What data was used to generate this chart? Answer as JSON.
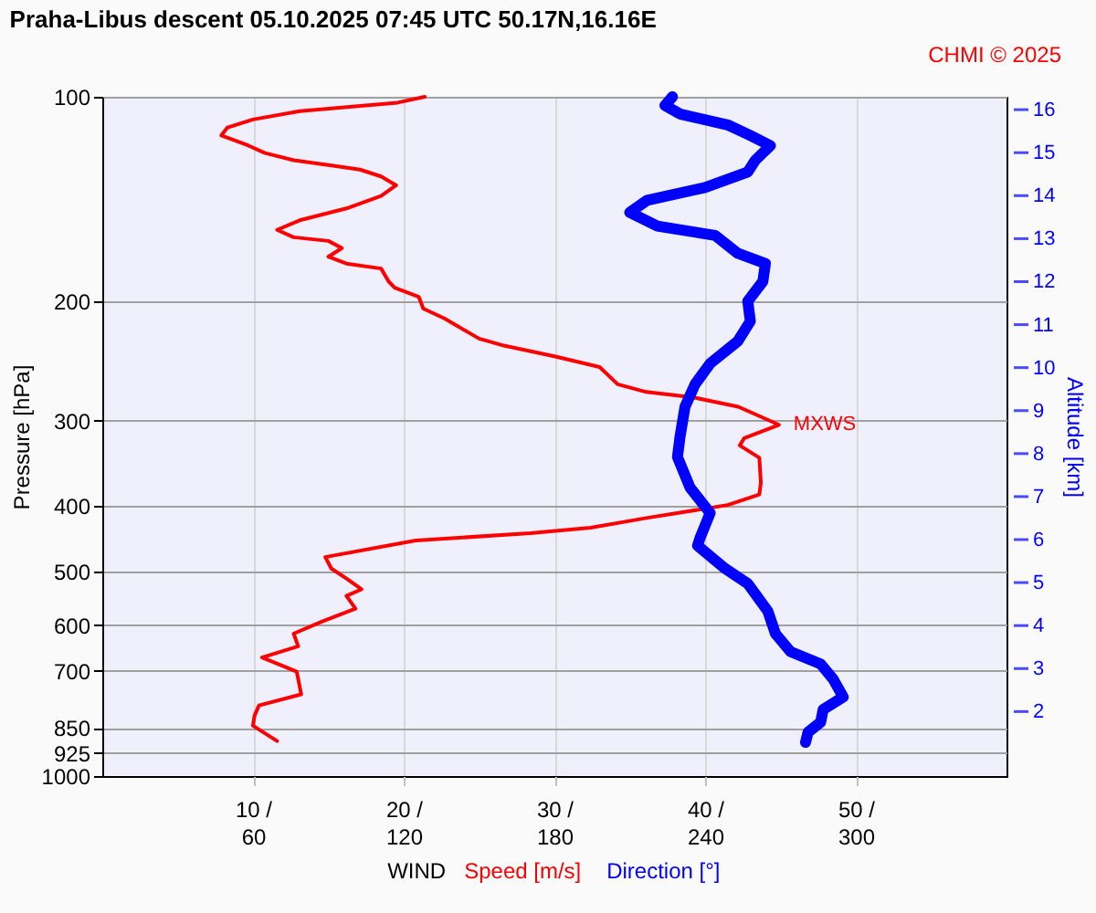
{
  "chart_data": {
    "type": "line",
    "orientation": "horizontal",
    "title": "Praha-Libus   descent   05.10.2025 07:45 UTC   50.17N,16.16E",
    "xlabel": "Speed [m/s]",
    "x2label": "Direction [°]",
    "ylabel": "Pressure [hPa]",
    "y2label": "Altitude [km]",
    "annotations": [
      "WIND",
      {
        "text": "MXWS",
        "x": 44.9,
        "y": 304
      },
      "CHMI © 2025"
    ],
    "xlim": [
      0,
      60
    ],
    "xticks": [
      {
        "value": 10,
        "label": "10 /"
      },
      {
        "value": 20,
        "label": "20 /"
      },
      {
        "value": 30,
        "label": "30 /"
      },
      {
        "value": 40,
        "label": "40 /"
      },
      {
        "value": 50,
        "label": "50 /"
      }
    ],
    "x2lim": [
      0,
      360
    ],
    "x2ticks": [
      60,
      120,
      180,
      240,
      300
    ],
    "ylim": [
      1000,
      100
    ],
    "yticks": [
      100,
      200,
      300,
      400,
      500,
      600,
      700,
      850,
      925,
      1000
    ],
    "log": "y",
    "y2lim": [
      0.5,
      16.3
    ],
    "y2ticks": [
      2,
      3,
      4,
      5,
      6,
      7,
      8,
      9,
      10,
      11,
      12,
      13,
      14,
      15,
      16
    ],
    "grid": true,
    "series": [
      {
        "color": "#ff0000",
        "x": [
          100,
          102,
          105,
          108,
          111,
          114,
          118,
          121,
          124,
          126,
          128,
          131,
          135,
          140,
          146,
          152,
          157,
          161,
          163,
          167,
          172,
          176,
          179,
          187,
          191,
          197,
          205,
          212,
          227,
          232,
          241,
          250,
          265,
          272,
          277,
          286,
          304,
          318,
          326,
          340,
          370,
          385,
          399,
          417,
          431,
          439,
          450,
          476,
          495,
          512,
          531,
          543,
          567,
          592,
          617,
          644,
          669,
          702,
          758,
          787,
          815,
          843,
          888
        ],
        "values": [
          21.4,
          19.6,
          13.1,
          10.0,
          8.3,
          7.9,
          9.7,
          10.8,
          12.7,
          15.0,
          17.1,
          18.5,
          19.5,
          18.5,
          16.2,
          13.1,
          11.6,
          12.7,
          15.0,
          15.9,
          15.0,
          16.2,
          18.5,
          19.0,
          19.4,
          21.0,
          21.3,
          22.7,
          25.0,
          26.5,
          30.0,
          33.0,
          34.2,
          36.1,
          39.2,
          42.2,
          44.9,
          42.6,
          42.3,
          43.6,
          43.7,
          43.6,
          41.5,
          36.1,
          32.4,
          28.4,
          20.8,
          14.8,
          15.2,
          16.2,
          17.2,
          16.2,
          16.8,
          14.6,
          12.7,
          13.0,
          10.6,
          12.9,
          13.2,
          10.4,
          10.1,
          10.0,
          11.6
        ]
      },
      {
        "color": "#0000ff",
        "axis": "x2",
        "x": [
          100,
          103,
          106,
          110,
          114,
          118,
          124,
          129,
          136,
          142,
          148,
          155,
          160,
          170,
          176,
          187,
          200,
          214,
          229,
          247,
          265,
          286,
          317,
          339,
          376,
          410,
          446,
          458,
          495,
          521,
          572,
          617,
          656,
          684,
          720,
          765,
          798,
          833,
          862,
          892
        ],
        "values": [
          227,
          224,
          230,
          249,
          258,
          266,
          260,
          257,
          240,
          217,
          210,
          221,
          244,
          253,
          264,
          263,
          257,
          258,
          253,
          242,
          236,
          232,
          230,
          229,
          234,
          242,
          238,
          237,
          248,
          257,
          265,
          268,
          274,
          286,
          291,
          295,
          287,
          286,
          281,
          280
        ]
      }
    ]
  }
}
